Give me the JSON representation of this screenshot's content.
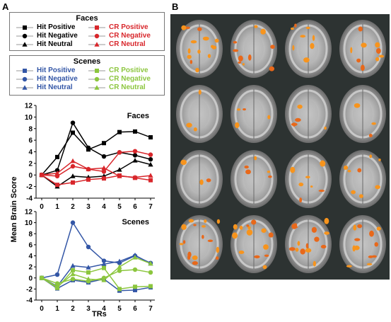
{
  "panel_labels": {
    "a": "A",
    "b": "B"
  },
  "legend_faces": {
    "title": "Faces",
    "items": [
      {
        "label": "Hit Positive",
        "symbol": "square",
        "color": "#000000"
      },
      {
        "label": "Hit Negative",
        "symbol": "circle",
        "color": "#000000"
      },
      {
        "label": "Hit Neutral",
        "symbol": "triangle",
        "color": "#000000"
      },
      {
        "label": "CR Positive",
        "symbol": "square",
        "color": "#d8262b"
      },
      {
        "label": "CR Negative",
        "symbol": "circle",
        "color": "#d8262b"
      },
      {
        "label": "CR Neutral",
        "symbol": "triangle",
        "color": "#d8262b"
      }
    ]
  },
  "legend_scenes": {
    "title": "Scenes",
    "items": [
      {
        "label": "Hit Positive",
        "symbol": "square",
        "color": "#3356a6"
      },
      {
        "label": "Hit Negative",
        "symbol": "circle",
        "color": "#3356a6"
      },
      {
        "label": "Hit Neutral",
        "symbol": "triangle",
        "color": "#3356a6"
      },
      {
        "label": "CR Positive",
        "symbol": "square",
        "color": "#8cc63e"
      },
      {
        "label": "CR Negative",
        "symbol": "circle",
        "color": "#8cc63e"
      },
      {
        "label": "CR Neutral",
        "symbol": "triangle",
        "color": "#8cc63e"
      }
    ]
  },
  "axes": {
    "ylabel": "Mean Brain Score",
    "xlabel": "TRs"
  },
  "chart_data": [
    {
      "type": "line",
      "title": "Faces",
      "x": [
        0,
        1,
        2,
        3,
        4,
        5,
        6,
        7
      ],
      "ylim": [
        -4,
        12
      ],
      "yticks": [
        -4,
        -2,
        0,
        2,
        4,
        6,
        8,
        10,
        12
      ],
      "grid": false,
      "series": [
        {
          "name": "Hit Positive",
          "symbol": "square",
          "color": "#000000",
          "values": [
            0,
            3.1,
            7.3,
            4.4,
            5.5,
            7.4,
            7.5,
            6.5
          ]
        },
        {
          "name": "Hit Negative",
          "symbol": "circle",
          "color": "#000000",
          "values": [
            0,
            0.8,
            9.0,
            4.7,
            3.2,
            3.9,
            3.4,
            2.7
          ]
        },
        {
          "name": "Hit Neutral",
          "symbol": "triangle",
          "color": "#000000",
          "values": [
            0,
            -2.0,
            -0.2,
            -0.4,
            -0.2,
            0.9,
            2.5,
            1.8
          ]
        },
        {
          "name": "CR Positive",
          "symbol": "square",
          "color": "#d8262b",
          "values": [
            0,
            -1.7,
            -1.3,
            -0.8,
            -0.6,
            -0.1,
            -0.5,
            -0.9
          ]
        },
        {
          "name": "CR Negative",
          "symbol": "circle",
          "color": "#d8262b",
          "values": [
            0,
            -0.2,
            1.5,
            1.0,
            0.6,
            3.9,
            4.1,
            3.5
          ]
        },
        {
          "name": "CR Neutral",
          "symbol": "triangle",
          "color": "#d8262b",
          "values": [
            0,
            0.3,
            2.4,
            1.0,
            1.2,
            -0.2,
            -0.4,
            -0.1
          ]
        }
      ]
    },
    {
      "type": "line",
      "title": "Scenes",
      "x": [
        0,
        1,
        2,
        3,
        4,
        5,
        6,
        7
      ],
      "xlabel": "TRs",
      "ylim": [
        -4,
        12
      ],
      "yticks": [
        -4,
        -2,
        0,
        2,
        4,
        6,
        8,
        10,
        12
      ],
      "grid": false,
      "series": [
        {
          "name": "Hit Positive",
          "symbol": "square",
          "color": "#3356a6",
          "values": [
            0,
            -1.9,
            -0.4,
            -0.8,
            -0.2,
            -2.3,
            -2.2,
            -1.7
          ]
        },
        {
          "name": "Hit Negative",
          "symbol": "circle",
          "color": "#3356a6",
          "values": [
            0,
            0.6,
            10.0,
            5.6,
            3.1,
            2.7,
            4.0,
            2.7
          ]
        },
        {
          "name": "Hit Neutral",
          "symbol": "triangle",
          "color": "#3356a6",
          "values": [
            0,
            -1.5,
            2.2,
            1.9,
            2.5,
            3.0,
            4.1,
            2.6
          ]
        },
        {
          "name": "CR Positive",
          "symbol": "square",
          "color": "#8cc63e",
          "values": [
            0,
            -1.8,
            1.4,
            1.0,
            1.8,
            -2.0,
            -1.6,
            -1.5
          ]
        },
        {
          "name": "CR Negative",
          "symbol": "circle",
          "color": "#8cc63e",
          "values": [
            0,
            -1.0,
            -0.2,
            -0.6,
            0.0,
            1.3,
            1.5,
            1.0
          ]
        },
        {
          "name": "CR Neutral",
          "symbol": "triangle",
          "color": "#8cc63e",
          "values": [
            0,
            -1.6,
            0.7,
            -0.2,
            -0.4,
            2.0,
            3.7,
            2.6
          ]
        }
      ]
    }
  ]
}
